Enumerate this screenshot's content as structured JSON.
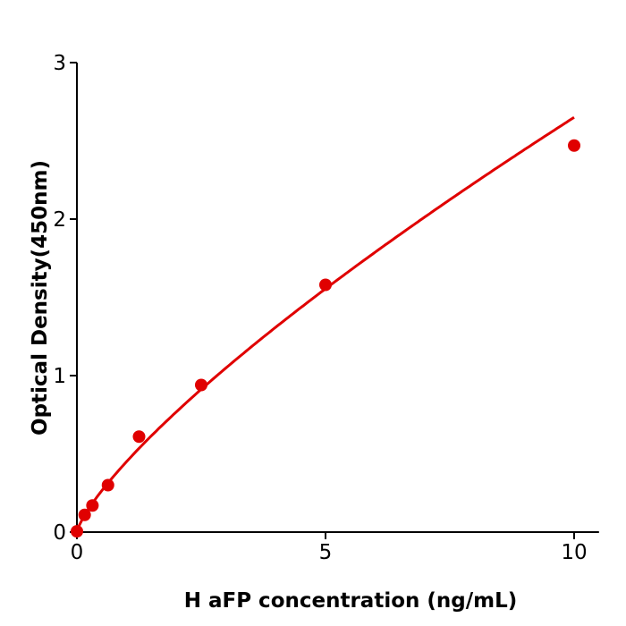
{
  "chart_data": {
    "type": "scatter",
    "xlabel": "H  aFP concentration (ng/mL)",
    "ylabel": "Optical Density(450nm)",
    "xlim": [
      0,
      10.5
    ],
    "ylim": [
      0,
      3
    ],
    "xticks": [
      "0",
      "5",
      "10"
    ],
    "yticks": [
      "0",
      "1",
      "2",
      "3"
    ],
    "grid": false,
    "color": "#e00000",
    "series": [
      {
        "x": [
          0,
          0.156,
          0.3125,
          0.625,
          1.25,
          2.5,
          5,
          10
        ],
        "y": [
          0.005,
          0.11,
          0.17,
          0.3,
          0.61,
          0.94,
          1.58,
          2.47
        ]
      }
    ]
  }
}
